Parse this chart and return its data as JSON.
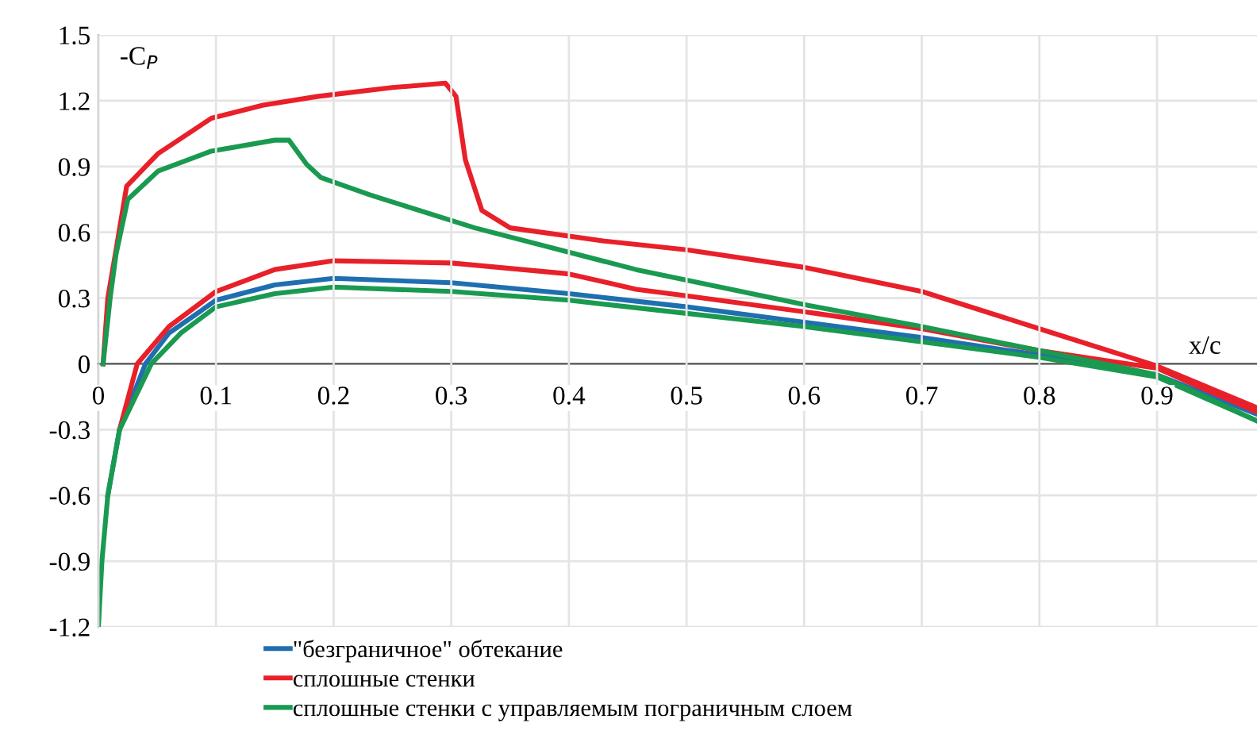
{
  "chart_data": {
    "type": "line",
    "xlabel": "x/c",
    "ylabel": "-C$_{P}$",
    "xlim": [
      0,
      0.985
    ],
    "xticks": [
      0,
      0.1,
      0.2,
      0.3,
      0.4,
      0.5,
      0.6,
      0.7,
      0.8,
      0.9
    ],
    "ylim": [
      -1.2,
      1.5
    ],
    "yticks": [
      -1.2,
      -0.9,
      -0.6,
      -0.3,
      0,
      0.3,
      0.6,
      0.9,
      1.2,
      1.5
    ],
    "grid": true,
    "legend": "bottom",
    "line_style": "solid",
    "marker": "none",
    "series": [
      {
        "name": "\"безграничное\" обтекание",
        "color": "#1f6fb0",
        "x": [
          0.008,
          0.018,
          0.04,
          0.06,
          0.1,
          0.15,
          0.2,
          0.3,
          0.4,
          0.5,
          0.6,
          0.7,
          0.8,
          0.9,
          0.985
        ],
        "values": [
          -0.6,
          -0.3,
          0,
          0.14,
          0.29,
          0.36,
          0.39,
          0.37,
          0.32,
          0.26,
          0.19,
          0.12,
          0.04,
          -0.05,
          -0.23
        ]
      },
      {
        "name": "сплошные стенки",
        "color": "#e8202a",
        "x": [
          0.004,
          0.008,
          0.015,
          0.024,
          0.051,
          0.096,
          0.14,
          0.187,
          0.25,
          0.295,
          0.304,
          0.312,
          0.326,
          0.35,
          0.43,
          0.5,
          0.6,
          0.7,
          0.8,
          0.9,
          0.985
        ],
        "values": [
          0,
          0.3,
          0.52,
          0.81,
          0.96,
          1.12,
          1.18,
          1.22,
          1.26,
          1.28,
          1.22,
          0.93,
          0.7,
          0.62,
          0.56,
          0.52,
          0.44,
          0.33,
          0.16,
          -0.01,
          -0.2
        ]
      },
      {
        "color": "#e8202a",
        "x": [
          0.018,
          0.033,
          0.06,
          0.1,
          0.15,
          0.2,
          0.3,
          0.4,
          0.457,
          0.5,
          0.61,
          0.7,
          0.8,
          0.9,
          0.985
        ],
        "values": [
          -0.3,
          0,
          0.17,
          0.33,
          0.43,
          0.47,
          0.46,
          0.41,
          0.34,
          0.31,
          0.23,
          0.16,
          0.06,
          -0.02,
          -0.22
        ]
      },
      {
        "name": "сплошные стенки с управляемым пограничным слоем",
        "color": "#1a9a50",
        "x": [
          0.004,
          0.01,
          0.015,
          0.025,
          0.051,
          0.096,
          0.15,
          0.162,
          0.177,
          0.189,
          0.231,
          0.32,
          0.457,
          0.6,
          0.7,
          0.8,
          0.9,
          0.985
        ],
        "values": [
          0,
          0.3,
          0.5,
          0.75,
          0.88,
          0.97,
          1.02,
          1.02,
          0.91,
          0.85,
          0.77,
          0.62,
          0.43,
          0.27,
          0.17,
          0.06,
          -0.05,
          -0.26
        ]
      },
      {
        "color": "#1a9a50",
        "x": [
          0,
          0.003,
          0.008,
          0.018,
          0.045,
          0.07,
          0.1,
          0.15,
          0.2,
          0.3,
          0.4,
          0.5,
          0.6,
          0.7,
          0.8,
          0.9,
          0.985
        ],
        "values": [
          -1.2,
          -0.9,
          -0.6,
          -0.3,
          0,
          0.14,
          0.26,
          0.32,
          0.35,
          0.33,
          0.29,
          0.23,
          0.17,
          0.1,
          0.03,
          -0.06,
          -0.26
        ]
      }
    ]
  }
}
